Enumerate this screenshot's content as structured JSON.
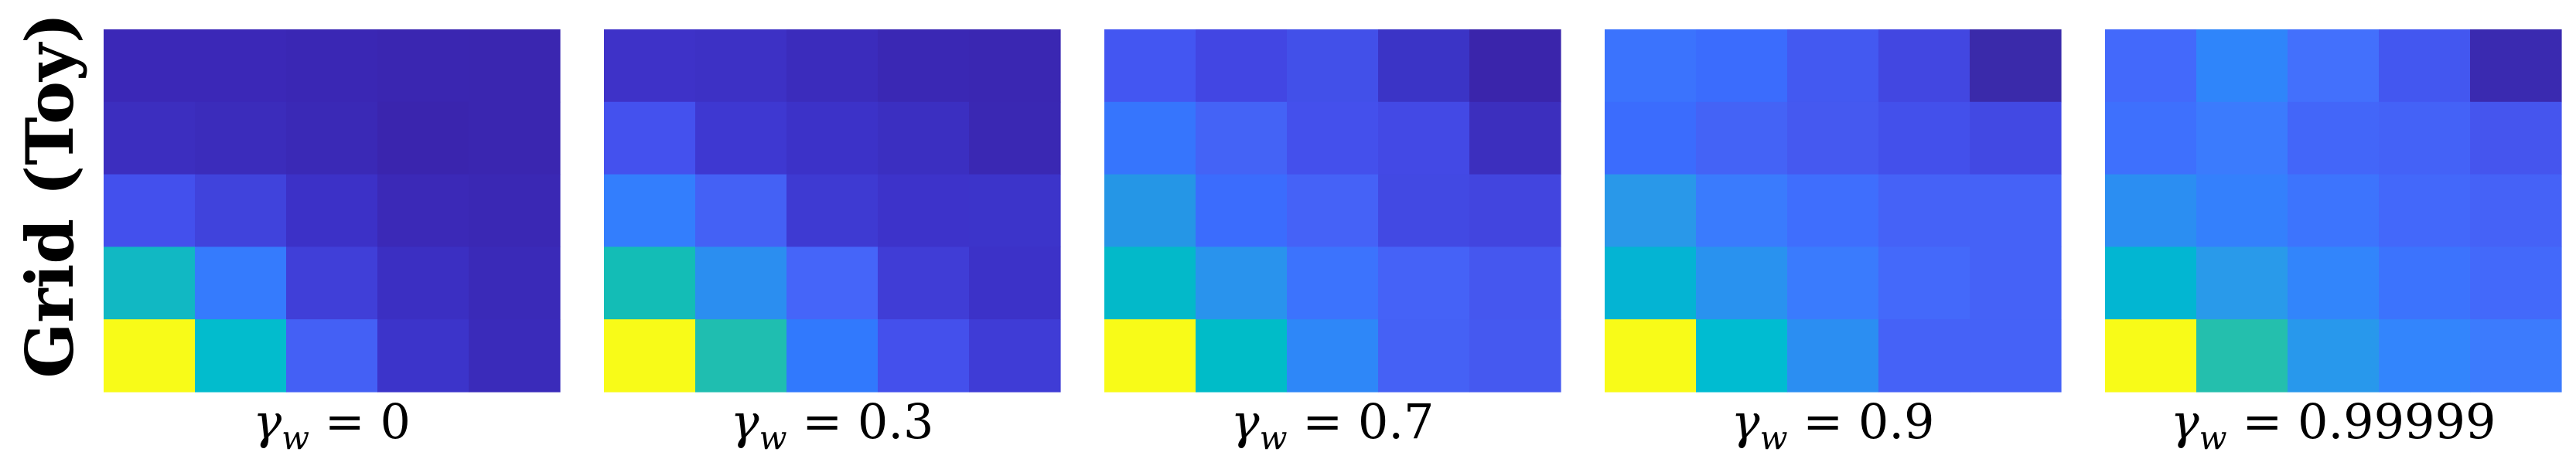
{
  "figure": {
    "row_label": "Grid (Toy)"
  },
  "chart_data": [
    {
      "type": "heatmap",
      "caption": {
        "symbol": "γ",
        "subscript": "w",
        "relation": " = ",
        "value": "0"
      },
      "grid": [
        [
          "#3b28b7",
          "#3b28b7",
          "#3a27b4",
          "#3a26b1",
          "#3a26b0"
        ],
        [
          "#3c2ebf",
          "#3b2cbb",
          "#3a29b6",
          "#3a25ae",
          "#3a26b0"
        ],
        [
          "#4350ed",
          "#4043dc",
          "#3c31c7",
          "#3b29b7",
          "#3a28b4"
        ],
        [
          "#11b8c3",
          "#357bfd",
          "#403fd8",
          "#3b2fc2",
          "#3a2ab8"
        ],
        [
          "#f8fb18",
          "#02bccd",
          "#4460f5",
          "#3c34ca",
          "#3a2bba"
        ]
      ]
    },
    {
      "type": "heatmap",
      "caption": {
        "symbol": "γ",
        "subscript": "w",
        "relation": " = ",
        "value": "0.3"
      },
      "grid": [
        [
          "#3e32c8",
          "#3d31c5",
          "#3b2cbc",
          "#3a28b4",
          "#3a27b2"
        ],
        [
          "#4451ee",
          "#3e38d1",
          "#3c32c8",
          "#3b2fc1",
          "#3a28b3"
        ],
        [
          "#337efd",
          "#4461f5",
          "#3e3ad2",
          "#3d33ca",
          "#3c34ca"
        ],
        [
          "#13bdb6",
          "#2b8ef0",
          "#4565f9",
          "#403dd6",
          "#3c32c8"
        ],
        [
          "#f8fb18",
          "#1fbeb0",
          "#3179fd",
          "#4450ec",
          "#3f3cd6"
        ]
      ]
    },
    {
      "type": "heatmap",
      "caption": {
        "symbol": "γ",
        "subscript": "w",
        "relation": " = ",
        "value": "0.7"
      },
      "grid": [
        [
          "#4356f2",
          "#4246e3",
          "#4250e9",
          "#3b34c6",
          "#3a25ab"
        ],
        [
          "#3675fd",
          "#4463f6",
          "#4450ec",
          "#4349e5",
          "#3c2fbe"
        ],
        [
          "#2596e6",
          "#3b6cfd",
          "#4562f7",
          "#4249e3",
          "#4245df"
        ],
        [
          "#03b9c9",
          "#2993ed",
          "#3c73fd",
          "#4562f7",
          "#4557ef"
        ],
        [
          "#f8fb18",
          "#00bcc8",
          "#2e87f8",
          "#4561f5",
          "#4559f0"
        ]
      ]
    },
    {
      "type": "heatmap",
      "caption": {
        "symbol": "γ",
        "subscript": "w",
        "relation": " = ",
        "value": "0.9"
      },
      "grid": [
        [
          "#3b73fd",
          "#3b6cfd",
          "#4359f1",
          "#4247e1",
          "#3a2aaa"
        ],
        [
          "#3b6cfd",
          "#4463f6",
          "#4559f0",
          "#4350eb",
          "#4249e3"
        ],
        [
          "#2998e9",
          "#3a7bfd",
          "#3f6efd",
          "#4562f7",
          "#4562f7"
        ],
        [
          "#04b4d3",
          "#2992ef",
          "#3a7bfd",
          "#4469fa",
          "#4562f7"
        ],
        [
          "#f8fb18",
          "#00bcd1",
          "#2b8ef2",
          "#4562f7",
          "#4562f7"
        ]
      ]
    },
    {
      "type": "heatmap",
      "caption": {
        "symbol": "γ",
        "subscript": "w",
        "relation": " = ",
        "value": "0.99999"
      },
      "grid": [
        [
          "#4369fb",
          "#2f85fa",
          "#4370fc",
          "#4357f0",
          "#3a2ab0"
        ],
        [
          "#3e70fd",
          "#3b7bfd",
          "#4366f9",
          "#4462f7",
          "#4555ee"
        ],
        [
          "#2b8ef2",
          "#3480fc",
          "#3d74fd",
          "#4368fa",
          "#4562f7"
        ],
        [
          "#02b6d2",
          "#299aea",
          "#3285fb",
          "#3c73fd",
          "#4369fa"
        ],
        [
          "#f8fb18",
          "#24bfad",
          "#2898ec",
          "#3385fc",
          "#3c7bfd"
        ]
      ]
    }
  ]
}
